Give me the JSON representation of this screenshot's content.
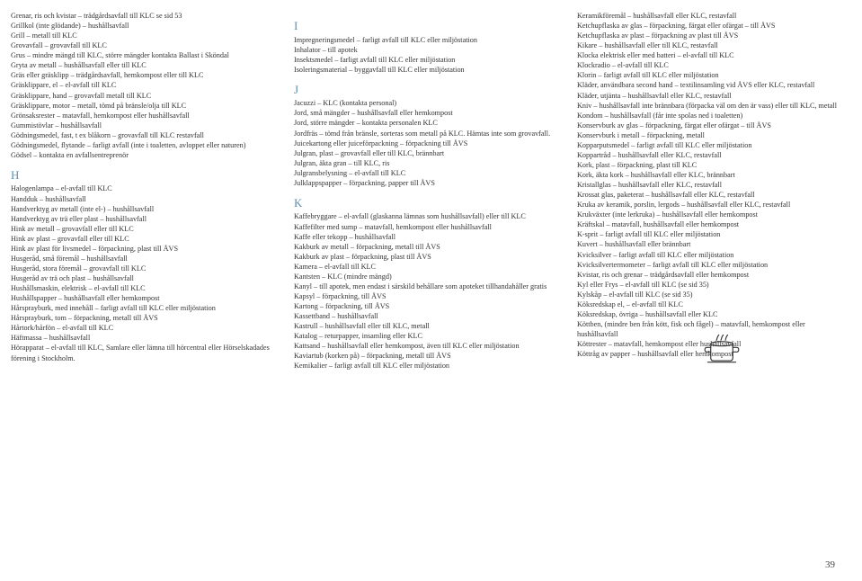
{
  "col1": {
    "lines1": [
      "Grenar, ris och kvistar – trädgårdsavfall till KLC se sid 53",
      "Grillkol (inte glödande) – hushållsavfall",
      "Grill – metall till KLC",
      "Grovavfall – grovavfall till KLC",
      "Grus – mindre mängd till KLC, större mängder kontakta Ballast i Sköndal",
      "Gryta av metall – hushållsavfall eller till KLC",
      "Gräs eller gräsklipp – trädgårdsavfall, hemkompost eller till KLC",
      "Gräsklippare, el – el-avfall till KLC",
      "Gräsklippare, hand – grovavfall metall till KLC",
      "Gräsklippare, motor – metall, tömd på bränsle/olja till KLC",
      "Grönsaksrester – matavfall, hemkompost eller hushållsavfall",
      "Gummistövlar – hushållsavfall",
      "Gödningsmedel, fast, t ex blåkorn – grovavfall till KLC restavfall",
      "Gödningsmedel, flytande – farligt avfall (inte i toaletten, avloppet eller naturen)",
      "Gödsel – kontakta en avfallsentreprenör"
    ],
    "headH": "H",
    "lines2": [
      "Halogenlampa – el-avfall till KLC",
      "Handduk – hushållsavfall",
      "Handverktyg av metall (inte el-) – hushållsavfall",
      "Handverktyg av trä eller plast – hushållsavfall",
      "Hink av metall – grovavfall eller till KLC",
      "Hink av plast – grovavfall eller till KLC",
      "Hink av plast för livsmedel – förpackning, plast till ÅVS",
      "Husgeråd, små föremål – hushållsavfall",
      "Husgeråd, stora föremål – grovavfall till KLC",
      "Husgeråd av trä och plast – hushållsavfall",
      "Hushållsmaskin, elektrisk – el-avfall till KLC",
      "Hushållspapper – hushållsavfall eller hemkompost",
      "Hårsprayburk, med innehåll – farligt avfall till KLC eller miljöstation",
      "Hårsprayburk, tom – förpackning, metall till ÅVS",
      "Hårtork/hårfön – el-avfall till KLC",
      "Häftmassa – hushållsavfall",
      "Hörapparat – el-avfall till KLC, Samlare eller lämna till hörcentral eller Hörselskadades förening i Stockholm."
    ]
  },
  "col2": {
    "headI": "I",
    "linesI": [
      "Impregneringsmedel – farligt avfall till KLC eller miljöstation",
      "Inhalator – till apotek",
      "Insektsmedel – farligt avfall till KLC eller miljöstation",
      "Isoleringsmaterial – byggavfall till KLC eller miljöstation"
    ],
    "headJ": "J",
    "linesJ": [
      "Jacuzzi – KLC (kontakta personal)",
      "Jord, små mängder – hushållsavfall eller hemkompost",
      "Jord, större mängder – kontakta personalen KLC",
      "Jordfräs – tömd från bränsle, sorteras som metall på KLC. Hämtas inte som grovavfall.",
      "Juicekartong eller juiceförpackning – förpackning till ÅVS",
      "Julgran, plast – grovavfall eller till KLC, brännbart",
      "Julgran, äkta gran – till KLC, ris",
      "Julgransbelysning – el-avfall till KLC",
      "Julklappspapper – förpackning, papper till ÅVS"
    ],
    "headK": "K",
    "linesK": [
      "Kaffebryggare – el-avfall (glaskanna lämnas som hushållsavfall) eller till KLC",
      "Kaffefilter med sump – matavfall, hemkompost eller hushållsavfall",
      "Kaffe eller tekopp – hushållsavfall",
      "Kakburk av metall – förpackning, metall till ÅVS",
      "Kakburk av plast – förpackning, plast till ÅVS",
      "Kamera – el-avfall till KLC",
      "Kantsten – KLC (mindre mängd)",
      "Kanyl – till apotek, men endast i särskild behållare som apoteket tillhandahåller gratis",
      "Kapsyl – förpackning, till ÅVS",
      "Kartong – förpackning, till ÅVS",
      "Kassettband – hushållsavfall",
      "Kastrull – hushållsavfall eller till KLC, metall",
      "Katalog – returpapper, insamling eller KLC",
      "Kattsand – hushållsavfall eller hemkompost, även till KLC eller miljöstation",
      "Kaviartub (korken på) – förpackning, metall till ÅVS",
      "Kemikalier – farligt avfall till KLC eller miljöstation"
    ]
  },
  "col3": {
    "lines": [
      "Keramikföremål – hushållsavfall eller KLC, restavfall",
      "Ketchupflaska av glas – förpackning, färgat eller ofärgat – till ÅVS",
      "Ketchupflaska av plast – förpackning av plast till ÅVS",
      "Kikare – hushållsavfall eller till KLC, restavfall",
      "Klocka elektrisk eller med batteri – el-avfall till KLC",
      "Klockradio – el-avfall till KLC",
      "Klorin – farligt avfall till KLC eller miljöstation",
      "Kläder, användbara second hand – textilinsamling vid ÅVS eller KLC, restavfall",
      "Kläder, utjänta – hushållsavfall eller KLC, restavfall",
      "Kniv – hushållsavfall inte brännbara (förpacka väl om den är vass) eller till KLC, metall",
      "Kondom – hushållsavfall (får inte spolas ned i toaletten)",
      "Konservburk av glas – förpackning, färgat eller ofärgat – till ÅVS",
      "Konservburk i metall – förpackning, metall",
      "Kopparputsmedel – farligt avfall till KLC eller miljöstation",
      "Koppartråd – hushållsavfall eller KLC, restavfall",
      "Kork, plast – förpackning, plast till KLC",
      "Kork, äkta kork – hushållsavfall eller KLC, brännbart",
      "Kristallglas – hushållsavfall eller KLC, restavfall",
      "Krossat glas, paketerat – hushållsavfall eller KLC, restavfall",
      "Kruka av keramik, porslin, lergods – hushållsavfall eller KLC, restavfall",
      "Krukväxter (inte lerkruka) – hushållsavfall eller hemkompost",
      "Kräftskal – matavfall, hushållsavfall eller hemkompost",
      "K-sprit – farligt avfall till KLC eller miljöstation",
      "Kuvert – hushållsavfall eller brännbart",
      "Kvicksilver – farligt avfall till KLC eller miljöstation",
      "Kvicksilvertermometer – farligt avfall till KLC eller miljöstation",
      "Kvistar, ris och grenar – trädgårdsavfall eller hemkompost",
      "Kyl eller Frys – el-avfall till KLC (se sid 35)",
      "Kylskåp – el-avfall till KLC (se sid 35)",
      "Köksredskap el, – el-avfall till KLC",
      "Köksredskap, övriga – hushållsavfall eller KLC",
      "Köttben, (mindre ben från kött, fisk och fågel) – matavfall, hemkompost eller hushållsavfall",
      "Köttrester – matavfall, hemkompost eller hushållsavfall",
      "Köttråg av papper – hushållsavfall eller hemkompost"
    ]
  },
  "pageNum": "39",
  "colors": {
    "heading": "#6091b0",
    "text": "#333333",
    "potStroke": "#333333"
  }
}
